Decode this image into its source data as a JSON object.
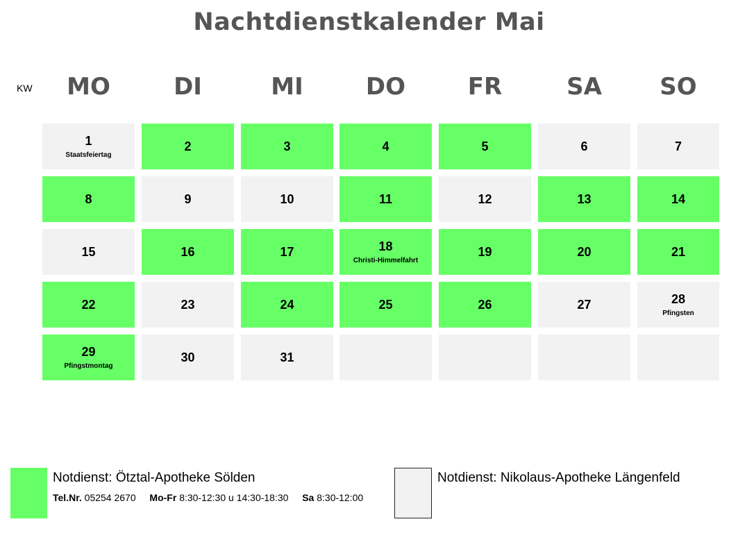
{
  "title": "Nachtdienstkalender Mai",
  "kw_label": "KW",
  "weekdays": [
    "MO",
    "DI",
    "MI",
    "DO",
    "FR",
    "SA",
    "SO"
  ],
  "colors": {
    "green": "#66ff66",
    "gray": "#f2f2f2",
    "heading": "#555555"
  },
  "weeks": [
    [
      {
        "day": "1",
        "note": "Staatsfeiertag",
        "color": "gray"
      },
      {
        "day": "2",
        "note": "",
        "color": "green"
      },
      {
        "day": "3",
        "note": "",
        "color": "green"
      },
      {
        "day": "4",
        "note": "",
        "color": "green"
      },
      {
        "day": "5",
        "note": "",
        "color": "green"
      },
      {
        "day": "6",
        "note": "",
        "color": "gray"
      },
      {
        "day": "7",
        "note": "",
        "color": "gray"
      }
    ],
    [
      {
        "day": "8",
        "note": "",
        "color": "green"
      },
      {
        "day": "9",
        "note": "",
        "color": "gray"
      },
      {
        "day": "10",
        "note": "",
        "color": "gray"
      },
      {
        "day": "11",
        "note": "",
        "color": "green"
      },
      {
        "day": "12",
        "note": "",
        "color": "gray"
      },
      {
        "day": "13",
        "note": "",
        "color": "green"
      },
      {
        "day": "14",
        "note": "",
        "color": "green"
      }
    ],
    [
      {
        "day": "15",
        "note": "",
        "color": "gray"
      },
      {
        "day": "16",
        "note": "",
        "color": "green"
      },
      {
        "day": "17",
        "note": "",
        "color": "green"
      },
      {
        "day": "18",
        "note": "Christi-Himmelfahrt",
        "color": "green"
      },
      {
        "day": "19",
        "note": "",
        "color": "green"
      },
      {
        "day": "20",
        "note": "",
        "color": "green"
      },
      {
        "day": "21",
        "note": "",
        "color": "green"
      }
    ],
    [
      {
        "day": "22",
        "note": "",
        "color": "green"
      },
      {
        "day": "23",
        "note": "",
        "color": "gray"
      },
      {
        "day": "24",
        "note": "",
        "color": "green"
      },
      {
        "day": "25",
        "note": "",
        "color": "green"
      },
      {
        "day": "26",
        "note": "",
        "color": "green"
      },
      {
        "day": "27",
        "note": "",
        "color": "gray"
      },
      {
        "day": "28",
        "note": "Pfingsten",
        "color": "gray"
      }
    ],
    [
      {
        "day": "29",
        "note": "Pfingstmontag",
        "color": "green"
      },
      {
        "day": "30",
        "note": "",
        "color": "gray"
      },
      {
        "day": "31",
        "note": "",
        "color": "gray"
      },
      {
        "day": "",
        "note": "",
        "color": "gray"
      },
      {
        "day": "",
        "note": "",
        "color": "gray"
      },
      {
        "day": "",
        "note": "",
        "color": "gray"
      },
      {
        "day": "",
        "note": "",
        "color": "gray"
      }
    ]
  ],
  "legend": {
    "green": {
      "title": "Notdienst: Ötztal-Apotheke Sölden",
      "tel_label": "Tel.Nr.",
      "tel_value": "05254 2670",
      "weekday_label": "Mo-Fr",
      "weekday_hours": "8:30-12:30 u 14:30-18:30",
      "sat_label": "Sa",
      "sat_hours": "8:30-12:00"
    },
    "gray": {
      "title": "Notdienst: Nikolaus-Apotheke Längenfeld"
    }
  }
}
